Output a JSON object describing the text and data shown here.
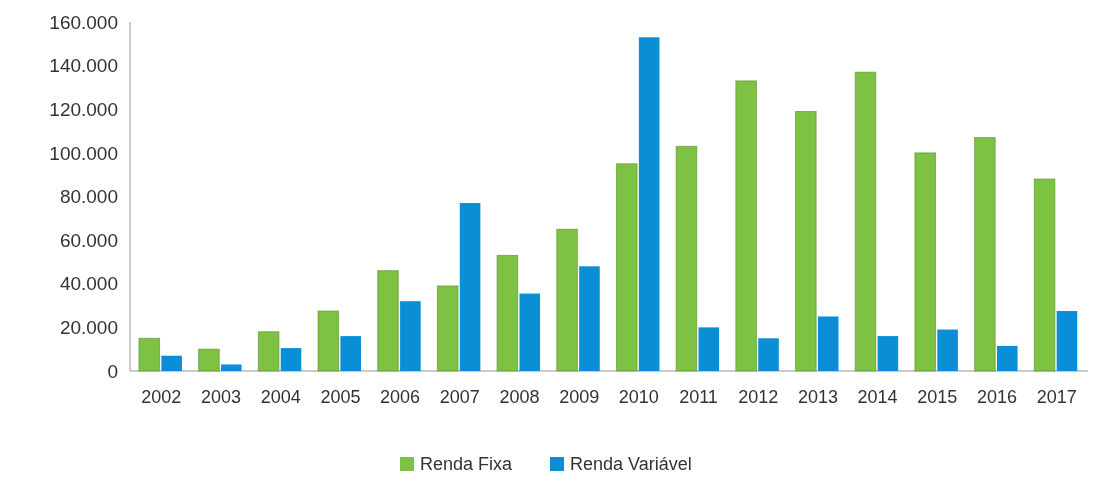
{
  "chart_data": {
    "type": "bar",
    "categories": [
      "2002",
      "2003",
      "2004",
      "2005",
      "2006",
      "2007",
      "2008",
      "2009",
      "2010",
      "2011",
      "2012",
      "2013",
      "2014",
      "2015",
      "2016",
      "2017"
    ],
    "series": [
      {
        "name": "Renda Fixa",
        "color": "#7dc242",
        "values": [
          15000,
          10000,
          18000,
          27500,
          46000,
          39000,
          53000,
          65000,
          95000,
          103000,
          133000,
          119000,
          137000,
          100000,
          107000,
          88000
        ]
      },
      {
        "name": "Renda Variável",
        "color": "#0a8fd6",
        "values": [
          7000,
          3000,
          10500,
          16000,
          32000,
          77000,
          35500,
          48000,
          153000,
          20000,
          15000,
          25000,
          16000,
          19000,
          11500,
          27500
        ]
      }
    ],
    "ylim": [
      0,
      160000
    ],
    "yticks": [
      0,
      {
        "value": 20000,
        "label": "20.000"
      },
      {
        "value": 40000,
        "label": "40.000"
      },
      {
        "value": 60000,
        "label": "60.000"
      },
      {
        "value": 80000,
        "label": "80.000"
      },
      {
        "value": 100000,
        "label": "100.000"
      },
      {
        "value": 120000,
        "label": "120.000"
      },
      {
        "value": 140000,
        "label": "140.000"
      },
      {
        "value": 160000,
        "label": "160.000"
      }
    ],
    "legend": "bottom"
  }
}
